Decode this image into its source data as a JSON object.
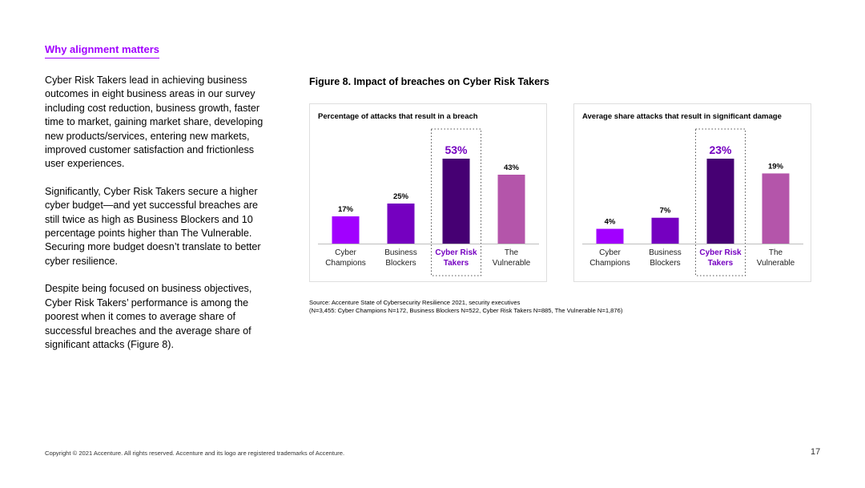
{
  "page": {
    "section_heading": "Why alignment matters",
    "paragraphs": [
      "Cyber Risk Takers lead in achieving business outcomes in eight business areas in our survey including cost reduction, business growth, faster time to market, gaining market share, developing new products/services, entering new markets, improved customer satisfaction and frictionless user experiences.",
      "Significantly, Cyber Risk Takers secure a higher cyber budget—and yet successful breaches are still twice as high as Business Blockers and 10 percentage points higher than The Vulnerable. Securing more budget doesn’t translate to better cyber resilience.",
      "Despite being focused on business objectives, Cyber Risk Takers’ performance is among the poorest when it comes to average share of successful breaches and the average share of significant attacks (Figure 8)."
    ],
    "figure_title": "Figure 8. Impact of breaches on Cyber Risk Takers",
    "source_line1": "Source: Accenture State of Cybersecurity Resilience 2021, security executives",
    "source_line2": "(N=3,455: Cyber Champions N=172, Business Blockers N=522, Cyber Risk Takers N=885, The Vulnerable N=1,876)",
    "footer": "Copyright © 2021 Accenture. All rights reserved. Accenture and its logo are registered trademarks of Accenture.",
    "page_number": "17"
  },
  "chart_data": [
    {
      "type": "bar",
      "title": "Percentage of attacks that result in a breach",
      "categories": [
        [
          "Cyber",
          "Champions"
        ],
        [
          "Business",
          "Blockers"
        ],
        [
          "Cyber Risk",
          "Takers"
        ],
        [
          "The",
          "Vulnerable"
        ]
      ],
      "values": [
        17,
        25,
        53,
        43
      ],
      "value_labels": [
        "17%",
        "25%",
        "53%",
        "43%"
      ],
      "colors": [
        "#a100ff",
        "#7500c0",
        "#460073",
        "#b455aa"
      ],
      "highlight_index": 2,
      "highlight_color": "#7500c0",
      "ylim": [
        0,
        53
      ],
      "grid": false,
      "legend": "none"
    },
    {
      "type": "bar",
      "title": "Average share attacks that result in significant damage",
      "categories": [
        [
          "Cyber",
          "Champions"
        ],
        [
          "Business",
          "Blockers"
        ],
        [
          "Cyber Risk",
          "Takers"
        ],
        [
          "The",
          "Vulnerable"
        ]
      ],
      "values": [
        4,
        7,
        23,
        19
      ],
      "value_labels": [
        "4%",
        "7%",
        "23%",
        "19%"
      ],
      "colors": [
        "#a100ff",
        "#7500c0",
        "#460073",
        "#b455aa"
      ],
      "highlight_index": 2,
      "highlight_color": "#7500c0",
      "ylim": [
        0,
        23
      ],
      "grid": false,
      "legend": "none"
    }
  ]
}
